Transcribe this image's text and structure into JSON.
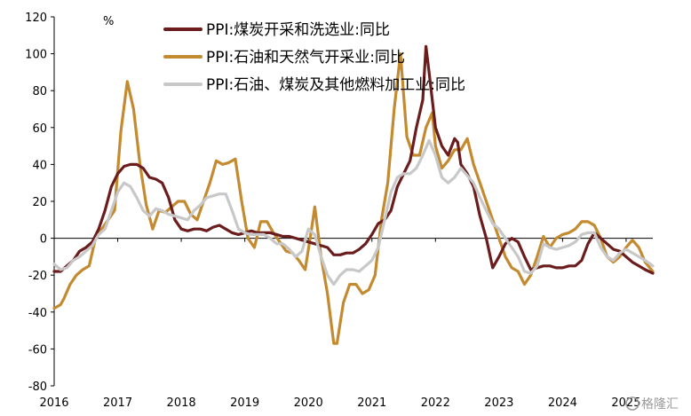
{
  "chart_data": {
    "type": "line",
    "y_unit": "%",
    "ylim": [
      -80,
      120
    ],
    "y_ticks": [
      -80,
      -60,
      -40,
      -20,
      0,
      20,
      40,
      60,
      80,
      100,
      120
    ],
    "x_ticks": [
      "2016",
      "2017",
      "2018",
      "2019",
      "2020",
      "2021",
      "2022",
      "2023",
      "2024",
      "2025"
    ],
    "x_start": 2016.0,
    "x_end": 2025.42,
    "legend_position": "top-center",
    "series": [
      {
        "name": "PPI:煤炭开采和洗选业:同比",
        "color": "#6b1c1c",
        "points": [
          [
            2016.0,
            -18
          ],
          [
            2016.1,
            -18
          ],
          [
            2016.2,
            -15
          ],
          [
            2016.3,
            -12
          ],
          [
            2016.4,
            -7
          ],
          [
            2016.5,
            -5
          ],
          [
            2016.6,
            -2
          ],
          [
            2016.7,
            5
          ],
          [
            2016.8,
            15
          ],
          [
            2016.9,
            28
          ],
          [
            2017.0,
            35
          ],
          [
            2017.1,
            39
          ],
          [
            2017.2,
            40
          ],
          [
            2017.3,
            40
          ],
          [
            2017.4,
            38
          ],
          [
            2017.5,
            33
          ],
          [
            2017.6,
            32
          ],
          [
            2017.7,
            30
          ],
          [
            2017.8,
            22
          ],
          [
            2017.9,
            10
          ],
          [
            2018.0,
            5
          ],
          [
            2018.1,
            4
          ],
          [
            2018.2,
            5
          ],
          [
            2018.3,
            5
          ],
          [
            2018.4,
            4
          ],
          [
            2018.5,
            6
          ],
          [
            2018.6,
            7
          ],
          [
            2018.7,
            5
          ],
          [
            2018.8,
            3
          ],
          [
            2018.9,
            2
          ],
          [
            2019.0,
            3
          ],
          [
            2019.1,
            4
          ],
          [
            2019.2,
            3
          ],
          [
            2019.3,
            3
          ],
          [
            2019.4,
            3
          ],
          [
            2019.5,
            2
          ],
          [
            2019.6,
            1
          ],
          [
            2019.7,
            1
          ],
          [
            2019.8,
            0
          ],
          [
            2019.9,
            -1
          ],
          [
            2020.0,
            -2
          ],
          [
            2020.1,
            -3
          ],
          [
            2020.2,
            -4
          ],
          [
            2020.3,
            -5
          ],
          [
            2020.4,
            -9
          ],
          [
            2020.5,
            -9
          ],
          [
            2020.6,
            -8
          ],
          [
            2020.7,
            -8
          ],
          [
            2020.8,
            -6
          ],
          [
            2020.9,
            -3
          ],
          [
            2021.0,
            2
          ],
          [
            2021.1,
            8
          ],
          [
            2021.2,
            10
          ],
          [
            2021.3,
            15
          ],
          [
            2021.4,
            28
          ],
          [
            2021.5,
            35
          ],
          [
            2021.6,
            42
          ],
          [
            2021.7,
            60
          ],
          [
            2021.8,
            75
          ],
          [
            2021.85,
            104
          ],
          [
            2021.9,
            90
          ],
          [
            2022.0,
            60
          ],
          [
            2022.1,
            50
          ],
          [
            2022.2,
            45
          ],
          [
            2022.3,
            54
          ],
          [
            2022.35,
            52
          ],
          [
            2022.4,
            40
          ],
          [
            2022.5,
            35
          ],
          [
            2022.6,
            28
          ],
          [
            2022.7,
            12
          ],
          [
            2022.8,
            0
          ],
          [
            2022.9,
            -16
          ],
          [
            2023.0,
            -10
          ],
          [
            2023.1,
            -3
          ],
          [
            2023.2,
            0
          ],
          [
            2023.3,
            -2
          ],
          [
            2023.4,
            -10
          ],
          [
            2023.5,
            -17
          ],
          [
            2023.6,
            -16
          ],
          [
            2023.7,
            -15
          ],
          [
            2023.8,
            -15
          ],
          [
            2023.9,
            -16
          ],
          [
            2024.0,
            -16
          ],
          [
            2024.1,
            -15
          ],
          [
            2024.2,
            -15
          ],
          [
            2024.3,
            -12
          ],
          [
            2024.4,
            -3
          ],
          [
            2024.5,
            3
          ],
          [
            2024.6,
            0
          ],
          [
            2024.7,
            -3
          ],
          [
            2024.8,
            -6
          ],
          [
            2024.9,
            -7
          ],
          [
            2025.0,
            -10
          ],
          [
            2025.1,
            -13
          ],
          [
            2025.2,
            -15
          ],
          [
            2025.3,
            -17
          ],
          [
            2025.42,
            -19
          ]
        ]
      },
      {
        "name": "PPI:石油和天然气开采业:同比",
        "color": "#c48a30",
        "points": [
          [
            2016.0,
            -38
          ],
          [
            2016.1,
            -36
          ],
          [
            2016.15,
            -33
          ],
          [
            2016.25,
            -25
          ],
          [
            2016.35,
            -20
          ],
          [
            2016.45,
            -17
          ],
          [
            2016.55,
            -15
          ],
          [
            2016.65,
            0
          ],
          [
            2016.75,
            5
          ],
          [
            2016.85,
            10
          ],
          [
            2016.95,
            15
          ],
          [
            2017.05,
            58
          ],
          [
            2017.15,
            85
          ],
          [
            2017.25,
            70
          ],
          [
            2017.35,
            40
          ],
          [
            2017.45,
            18
          ],
          [
            2017.55,
            5
          ],
          [
            2017.65,
            15
          ],
          [
            2017.75,
            14
          ],
          [
            2017.85,
            17
          ],
          [
            2017.95,
            20
          ],
          [
            2018.05,
            20
          ],
          [
            2018.15,
            13
          ],
          [
            2018.25,
            10
          ],
          [
            2018.35,
            20
          ],
          [
            2018.45,
            30
          ],
          [
            2018.55,
            42
          ],
          [
            2018.65,
            40
          ],
          [
            2018.75,
            41
          ],
          [
            2018.85,
            43
          ],
          [
            2018.95,
            20
          ],
          [
            2019.05,
            0
          ],
          [
            2019.15,
            -5
          ],
          [
            2019.25,
            9
          ],
          [
            2019.35,
            9
          ],
          [
            2019.45,
            3
          ],
          [
            2019.55,
            -2
          ],
          [
            2019.65,
            -7
          ],
          [
            2019.75,
            -8
          ],
          [
            2019.85,
            -12
          ],
          [
            2019.95,
            -17
          ],
          [
            2020.05,
            5
          ],
          [
            2020.1,
            17
          ],
          [
            2020.2,
            -10
          ],
          [
            2020.3,
            -30
          ],
          [
            2020.4,
            -57
          ],
          [
            2020.45,
            -57
          ],
          [
            2020.55,
            -35
          ],
          [
            2020.65,
            -25
          ],
          [
            2020.75,
            -25
          ],
          [
            2020.85,
            -30
          ],
          [
            2020.95,
            -28
          ],
          [
            2021.05,
            -20
          ],
          [
            2021.15,
            10
          ],
          [
            2021.25,
            30
          ],
          [
            2021.35,
            70
          ],
          [
            2021.45,
            100
          ],
          [
            2021.55,
            55
          ],
          [
            2021.65,
            45
          ],
          [
            2021.75,
            45
          ],
          [
            2021.85,
            60
          ],
          [
            2021.95,
            68
          ],
          [
            2022.0,
            50
          ],
          [
            2022.1,
            38
          ],
          [
            2022.2,
            42
          ],
          [
            2022.3,
            48
          ],
          [
            2022.4,
            48
          ],
          [
            2022.5,
            54
          ],
          [
            2022.6,
            40
          ],
          [
            2022.7,
            30
          ],
          [
            2022.8,
            20
          ],
          [
            2022.9,
            10
          ],
          [
            2023.0,
            0
          ],
          [
            2023.1,
            -10
          ],
          [
            2023.2,
            -16
          ],
          [
            2023.3,
            -18
          ],
          [
            2023.4,
            -25
          ],
          [
            2023.5,
            -20
          ],
          [
            2023.6,
            -10
          ],
          [
            2023.7,
            1
          ],
          [
            2023.8,
            -5
          ],
          [
            2023.9,
            0
          ],
          [
            2024.0,
            2
          ],
          [
            2024.1,
            3
          ],
          [
            2024.2,
            5
          ],
          [
            2024.3,
            9
          ],
          [
            2024.4,
            9
          ],
          [
            2024.5,
            7
          ],
          [
            2024.6,
            0
          ],
          [
            2024.7,
            -10
          ],
          [
            2024.8,
            -13
          ],
          [
            2024.9,
            -10
          ],
          [
            2025.0,
            -5
          ],
          [
            2025.1,
            -1
          ],
          [
            2025.2,
            -5
          ],
          [
            2025.3,
            -13
          ],
          [
            2025.42,
            -18
          ]
        ]
      },
      {
        "name": "PPI:石油、煤炭及其他燃料加工业:同比",
        "color": "#c8c8c8",
        "points": [
          [
            2016.0,
            -14
          ],
          [
            2016.1,
            -17
          ],
          [
            2016.2,
            -16
          ],
          [
            2016.3,
            -12
          ],
          [
            2016.4,
            -10
          ],
          [
            2016.5,
            -7
          ],
          [
            2016.6,
            -4
          ],
          [
            2016.7,
            2
          ],
          [
            2016.8,
            5
          ],
          [
            2016.9,
            15
          ],
          [
            2017.0,
            25
          ],
          [
            2017.1,
            30
          ],
          [
            2017.2,
            28
          ],
          [
            2017.3,
            22
          ],
          [
            2017.4,
            15
          ],
          [
            2017.5,
            12
          ],
          [
            2017.6,
            16
          ],
          [
            2017.7,
            15
          ],
          [
            2017.8,
            13
          ],
          [
            2017.9,
            12
          ],
          [
            2018.0,
            11
          ],
          [
            2018.1,
            10
          ],
          [
            2018.2,
            15
          ],
          [
            2018.3,
            18
          ],
          [
            2018.4,
            22
          ],
          [
            2018.5,
            23
          ],
          [
            2018.6,
            24
          ],
          [
            2018.7,
            24
          ],
          [
            2018.8,
            15
          ],
          [
            2018.9,
            5
          ],
          [
            2019.0,
            3
          ],
          [
            2019.1,
            2
          ],
          [
            2019.2,
            2
          ],
          [
            2019.3,
            2
          ],
          [
            2019.4,
            0
          ],
          [
            2019.5,
            -3
          ],
          [
            2019.6,
            -3
          ],
          [
            2019.7,
            -6
          ],
          [
            2019.8,
            -10
          ],
          [
            2019.9,
            -7
          ],
          [
            2020.0,
            5
          ],
          [
            2020.1,
            2
          ],
          [
            2020.2,
            -10
          ],
          [
            2020.3,
            -20
          ],
          [
            2020.4,
            -25
          ],
          [
            2020.5,
            -20
          ],
          [
            2020.6,
            -17
          ],
          [
            2020.7,
            -17
          ],
          [
            2020.8,
            -18
          ],
          [
            2020.9,
            -15
          ],
          [
            2021.0,
            -12
          ],
          [
            2021.1,
            -5
          ],
          [
            2021.2,
            10
          ],
          [
            2021.3,
            25
          ],
          [
            2021.4,
            33
          ],
          [
            2021.5,
            35
          ],
          [
            2021.6,
            35
          ],
          [
            2021.7,
            38
          ],
          [
            2021.8,
            45
          ],
          [
            2021.9,
            53
          ],
          [
            2022.0,
            45
          ],
          [
            2022.1,
            33
          ],
          [
            2022.2,
            30
          ],
          [
            2022.3,
            33
          ],
          [
            2022.4,
            38
          ],
          [
            2022.5,
            34
          ],
          [
            2022.6,
            30
          ],
          [
            2022.7,
            22
          ],
          [
            2022.8,
            15
          ],
          [
            2022.9,
            8
          ],
          [
            2023.0,
            5
          ],
          [
            2023.1,
            0
          ],
          [
            2023.2,
            -5
          ],
          [
            2023.3,
            -10
          ],
          [
            2023.4,
            -18
          ],
          [
            2023.5,
            -19
          ],
          [
            2023.6,
            -15
          ],
          [
            2023.7,
            -3
          ],
          [
            2023.8,
            -5
          ],
          [
            2023.9,
            -6
          ],
          [
            2024.0,
            -5
          ],
          [
            2024.1,
            -4
          ],
          [
            2024.2,
            -2
          ],
          [
            2024.3,
            2
          ],
          [
            2024.4,
            3
          ],
          [
            2024.5,
            3
          ],
          [
            2024.6,
            -5
          ],
          [
            2024.7,
            -10
          ],
          [
            2024.8,
            -12
          ],
          [
            2024.9,
            -8
          ],
          [
            2025.0,
            -6
          ],
          [
            2025.1,
            -8
          ],
          [
            2025.2,
            -10
          ],
          [
            2025.3,
            -12
          ],
          [
            2025.42,
            -15
          ]
        ]
      }
    ]
  },
  "watermark": "格隆汇"
}
